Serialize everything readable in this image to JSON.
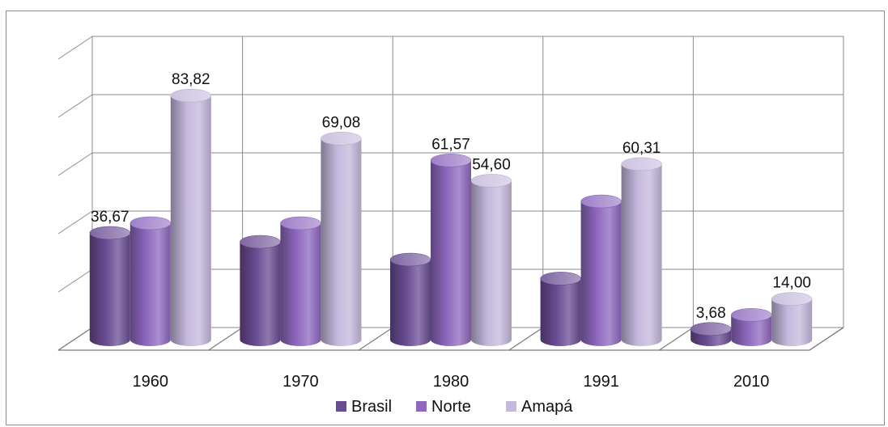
{
  "chart_data": {
    "type": "bar",
    "style": "3d-cylinder",
    "categories": [
      "1960",
      "1970",
      "1980",
      "1991",
      "2010"
    ],
    "series": [
      {
        "name": "Brasil",
        "color": "#6a4c93",
        "values": [
          36.67,
          33.6,
          27.5,
          21.0,
          3.68
        ]
      },
      {
        "name": "Norte",
        "color": "#8e68bf",
        "values": [
          40.0,
          40.0,
          61.57,
          47.5,
          8.5
        ]
      },
      {
        "name": "Amapá",
        "color": "#c4b8dc",
        "values": [
          83.82,
          69.08,
          54.6,
          60.31,
          14.0
        ]
      }
    ],
    "data_labels": [
      {
        "category": "1960",
        "series": "Brasil",
        "text": "36,67"
      },
      {
        "category": "1960",
        "series": "Amapá",
        "text": "83,82"
      },
      {
        "category": "1970",
        "series": "Amapá",
        "text": "69,08"
      },
      {
        "category": "1980",
        "series": "Norte",
        "text": "61,57"
      },
      {
        "category": "1980",
        "series": "Amapá",
        "text": "54,60"
      },
      {
        "category": "1991",
        "series": "Amapá",
        "text": "60,31"
      },
      {
        "category": "2010",
        "series": "Brasil",
        "text": "3,68"
      },
      {
        "category": "2010",
        "series": "Amapá",
        "text": "14,00"
      }
    ],
    "ylim": [
      0,
      100
    ],
    "grid": true,
    "legend_position": "bottom"
  }
}
